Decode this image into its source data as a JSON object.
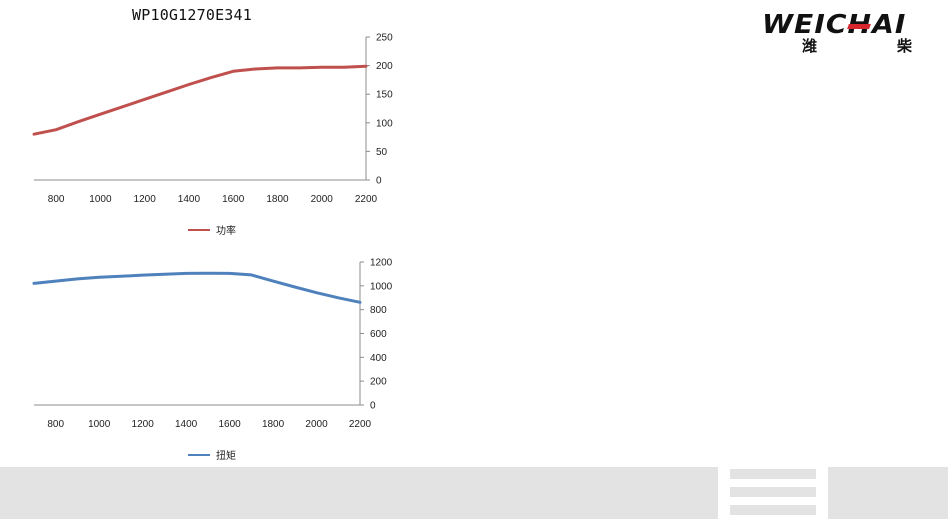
{
  "page": {
    "title": "WP10G1270E341"
  },
  "logo": {
    "text": "WEICHAI",
    "cn_1": "潍",
    "cn_2": "柴"
  },
  "chart_data": [
    {
      "type": "line",
      "x": [
        700,
        800,
        900,
        1000,
        1100,
        1200,
        1300,
        1400,
        1500,
        1600,
        1700,
        1800,
        1900,
        2000,
        2100,
        2200
      ],
      "series": [
        {
          "name": "功率",
          "color": "#c0504d",
          "values": [
            80,
            88,
            102,
            115,
            128,
            141,
            154,
            167,
            179,
            190,
            194,
            196,
            196,
            197,
            197,
            199
          ]
        }
      ],
      "xticks": [
        800,
        1000,
        1200,
        1400,
        1600,
        1800,
        2000,
        2200
      ],
      "yticks": [
        0,
        50,
        100,
        150,
        200,
        250
      ],
      "xlim": [
        700,
        2200
      ],
      "ylim": [
        0,
        250
      ],
      "xlabel": "",
      "ylabel": "",
      "y_axis_side": "right",
      "legend_position": "bottom"
    },
    {
      "type": "line",
      "x": [
        700,
        800,
        900,
        1000,
        1100,
        1200,
        1300,
        1400,
        1500,
        1600,
        1700,
        1800,
        1900,
        2000,
        2100,
        2200
      ],
      "series": [
        {
          "name": "扭矩",
          "color": "#4f81bd",
          "values": [
            1020,
            1040,
            1058,
            1072,
            1080,
            1090,
            1098,
            1104,
            1106,
            1104,
            1092,
            1040,
            990,
            942,
            900,
            862
          ]
        }
      ],
      "xticks": [
        800,
        1000,
        1200,
        1400,
        1600,
        1800,
        2000,
        2200
      ],
      "yticks": [
        0,
        200,
        400,
        600,
        800,
        1000,
        1200
      ],
      "xlim": [
        700,
        2200
      ],
      "ylim": [
        0,
        1200
      ],
      "xlabel": "",
      "ylabel": "",
      "y_axis_side": "right",
      "legend_position": "bottom"
    }
  ]
}
